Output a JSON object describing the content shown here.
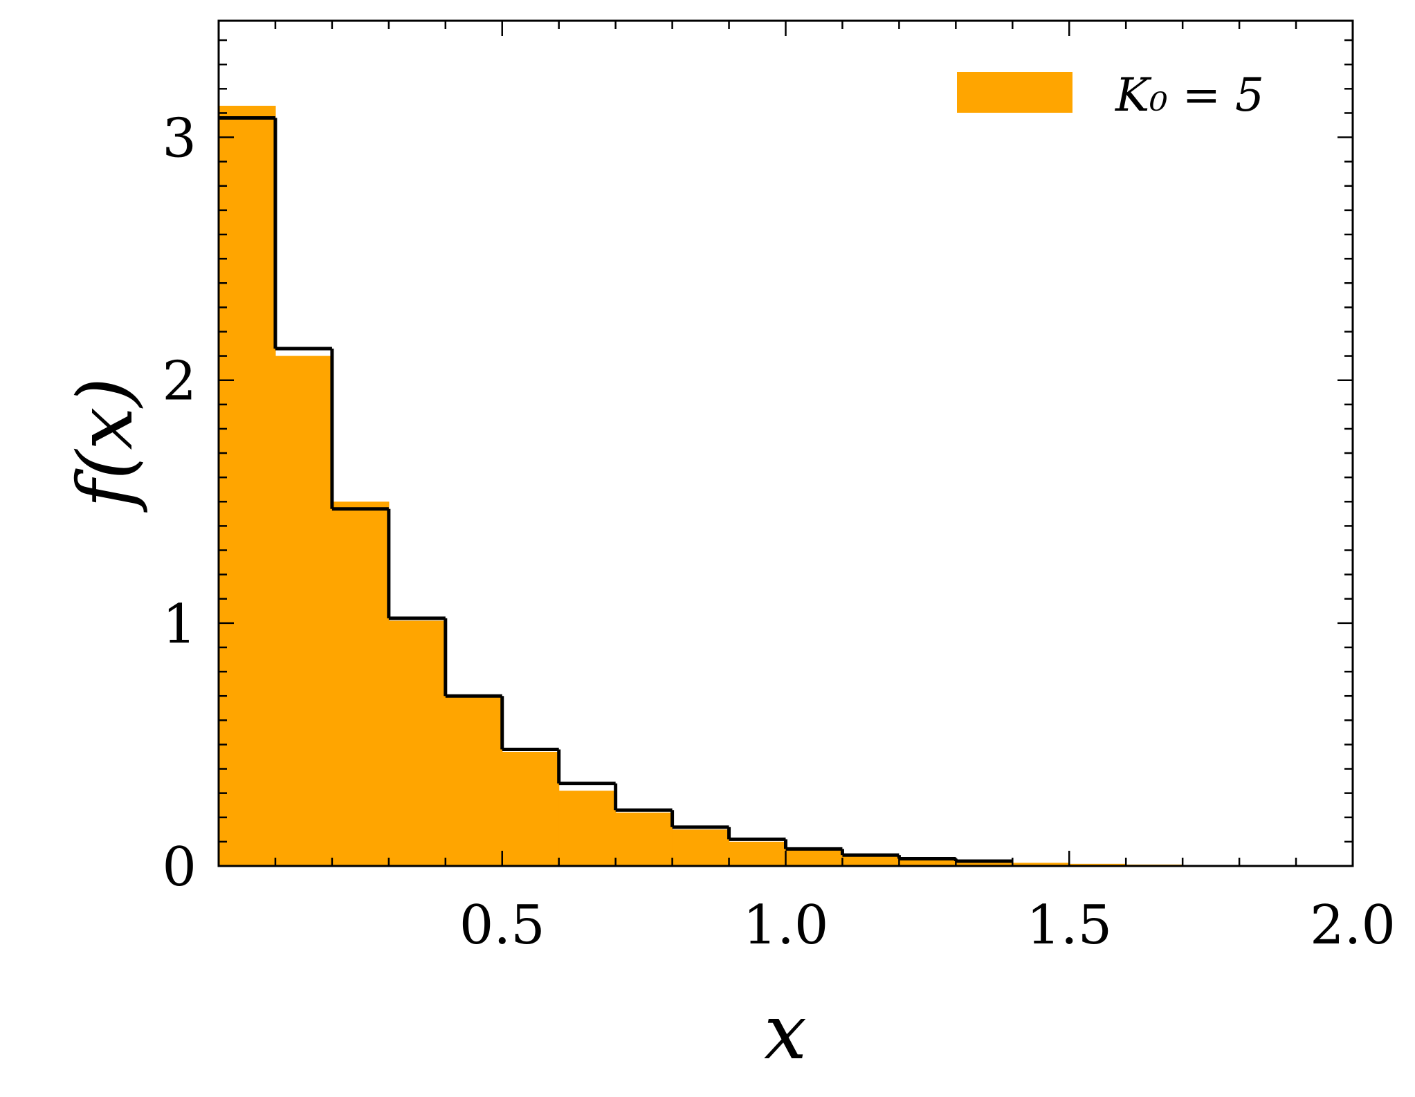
{
  "chart_data": {
    "type": "bar",
    "xlabel": "x",
    "ylabel": "f(x)",
    "xlim": [
      0,
      2.0
    ],
    "ylim": [
      0,
      3.48
    ],
    "xticks": [
      0.5,
      1.0,
      1.5,
      2.0
    ],
    "xtick_labels": [
      "0.5",
      "1.0",
      "1.5",
      "2.0"
    ],
    "yticks": [
      0,
      1,
      2,
      3
    ],
    "ytick_labels": [
      "0",
      "1",
      "2",
      "3"
    ],
    "legend": {
      "position": "top-right",
      "label": "K₀ = 5"
    },
    "grid": false,
    "colors": {
      "histogram": "#FFA500",
      "step": "#000000"
    },
    "series": [
      {
        "name": "K₀ = 5",
        "kind": "fine-histogram",
        "color": "#FFA500",
        "bin_edges": [
          0,
          0.1,
          0.2,
          0.3,
          0.4,
          0.5,
          0.6,
          0.7,
          0.8,
          0.9,
          1.0,
          1.1,
          1.2,
          1.3,
          1.4,
          1.5,
          1.6,
          1.7,
          1.8,
          1.9,
          2.0
        ],
        "values": [
          3.13,
          2.1,
          1.5,
          1.01,
          0.7,
          0.47,
          0.31,
          0.22,
          0.15,
          0.1,
          0.07,
          0.045,
          0.03,
          0.02,
          0.013,
          0.009,
          0.006,
          0.004,
          0.003,
          0.002
        ]
      },
      {
        "kind": "step",
        "color": "#000000",
        "bin_edges": [
          0,
          0.1,
          0.2,
          0.3,
          0.4,
          0.5,
          0.6,
          0.7,
          0.8,
          0.9,
          1.0,
          1.1,
          1.2,
          1.3,
          1.4
        ],
        "values": [
          3.08,
          2.13,
          1.47,
          1.02,
          0.7,
          0.48,
          0.34,
          0.23,
          0.16,
          0.11,
          0.07,
          0.045,
          0.03,
          0.02
        ]
      }
    ]
  }
}
